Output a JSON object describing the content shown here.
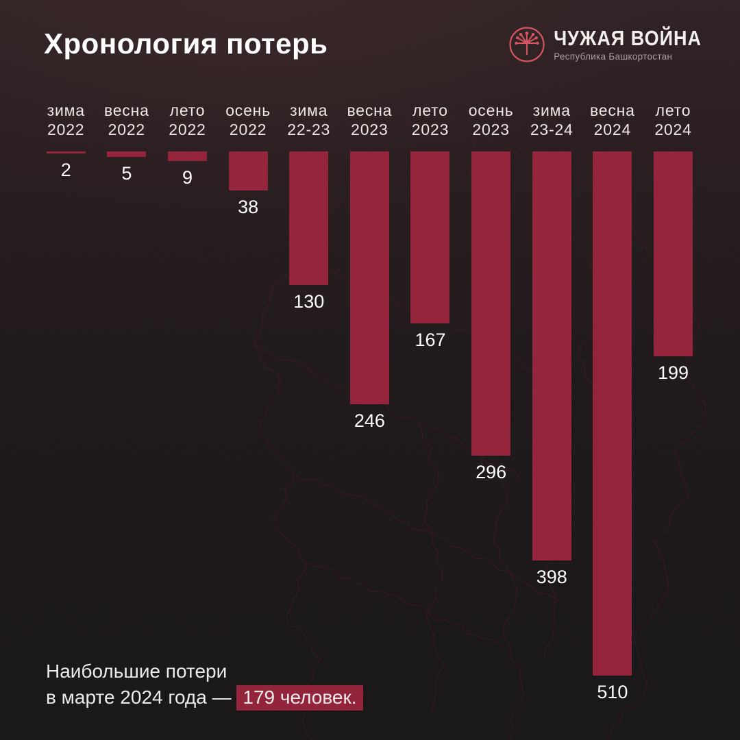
{
  "header": {
    "title": "Хронология потерь",
    "logo": {
      "icon": "kurai-flower-icon",
      "name": "ЧУЖАЯ ВОЙНА",
      "subtitle": "Республика Башкортостан",
      "icon_color": "#d44f5c"
    }
  },
  "chart_data": {
    "type": "bar",
    "orientation": "vertical-hanging-from-top",
    "title": "Хронология потерь",
    "categories": [
      {
        "line1": "зима",
        "line2": "2022"
      },
      {
        "line1": "весна",
        "line2": "2022"
      },
      {
        "line1": "лето",
        "line2": "2022"
      },
      {
        "line1": "осень",
        "line2": "2022"
      },
      {
        "line1": "зима",
        "line2": "22-23"
      },
      {
        "line1": "весна",
        "line2": "2023"
      },
      {
        "line1": "лето",
        "line2": "2023"
      },
      {
        "line1": "осень",
        "line2": "2023"
      },
      {
        "line1": "зима",
        "line2": "23-24"
      },
      {
        "line1": "весна",
        "line2": "2024"
      },
      {
        "line1": "лето",
        "line2": "2024"
      }
    ],
    "values": [
      2,
      5,
      9,
      38,
      130,
      246,
      167,
      296,
      398,
      510,
      199
    ],
    "bar_color": "#911d36",
    "value_label_color": "#ffffff",
    "grid": false,
    "legend": false,
    "annotation": "Наибольшие потери в марте 2024 года — 179 человек."
  },
  "footer": {
    "note_line1": "Наибольшие потери",
    "note_line2_prefix": "в марте 2024 года — ",
    "note_highlight": "179 человек.",
    "highlight_color": "#8e1c34"
  },
  "colors": {
    "background_top": "#2a1c1e",
    "background_bottom": "#131011",
    "map_outline": "#5a1622",
    "text_primary": "#ffffff",
    "text_secondary": "#a59d9b"
  }
}
